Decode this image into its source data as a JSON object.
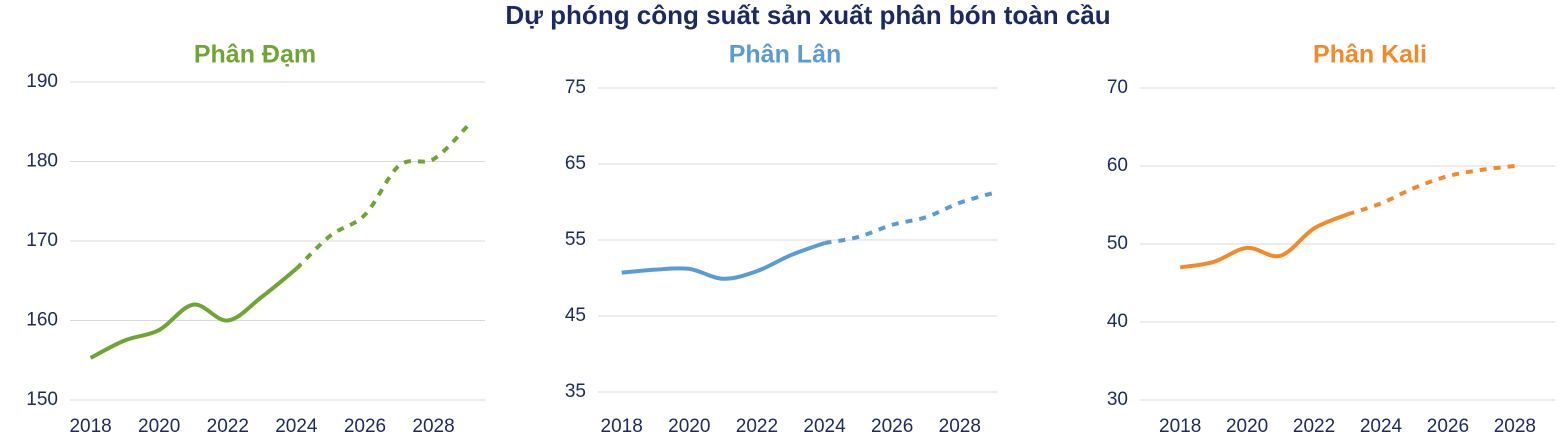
{
  "title": "Dự phóng công suất sản xuất phân bón toàn cầu",
  "chart_data": [
    {
      "type": "line",
      "title": "Phân Đạm",
      "color": "#6ea534",
      "grid": true,
      "x": [
        2018,
        2019,
        2020,
        2021,
        2022,
        2023,
        2024,
        2025,
        2026,
        2027,
        2028,
        2029
      ],
      "values": [
        155.3,
        157.5,
        158.8,
        162,
        160,
        163,
        166.5,
        170.7,
        173.3,
        179.5,
        180.3,
        184.5
      ],
      "dashed_from": 2024,
      "xlim": [
        2017.4,
        2029.5
      ],
      "xticks": [
        2018,
        2020,
        2022,
        2024,
        2026,
        2028
      ],
      "ylim": [
        150,
        190
      ],
      "yticks": [
        150,
        160,
        170,
        180,
        190
      ]
    },
    {
      "type": "line",
      "title": "Phân Lân",
      "color": "#5b9bd5",
      "grid": true,
      "x": [
        2018,
        2019,
        2020,
        2021,
        2022,
        2023,
        2024,
        2025,
        2026,
        2027,
        2028,
        2029
      ],
      "values": [
        50.7,
        51.1,
        51.2,
        49.9,
        50.9,
        53,
        54.6,
        55.4,
        57,
        58,
        59.9,
        61.2
      ],
      "dashed_from": 2024,
      "xlim": [
        2017.3,
        2029.1
      ],
      "xticks": [
        2018,
        2020,
        2022,
        2024,
        2026,
        2028
      ],
      "ylim": [
        35,
        75
      ],
      "yticks": [
        35,
        45,
        55,
        65,
        75
      ]
    },
    {
      "type": "line",
      "title": "Phân Kali",
      "color": "#f28a2a",
      "grid": true,
      "x": [
        2018,
        2019,
        2020,
        2021,
        2022,
        2023,
        2024,
        2025,
        2026,
        2027,
        2028
      ],
      "values": [
        47,
        47.7,
        49.5,
        48.5,
        52,
        53.8,
        55.2,
        57.2,
        58.7,
        59.5,
        60
      ],
      "dashed_from": 2023,
      "xlim": [
        2016.8,
        2029.2
      ],
      "xticks": [
        2018,
        2020,
        2022,
        2024,
        2026,
        2028
      ],
      "ylim": [
        30,
        70
      ],
      "yticks": [
        30,
        40,
        50,
        60,
        70
      ]
    }
  ]
}
